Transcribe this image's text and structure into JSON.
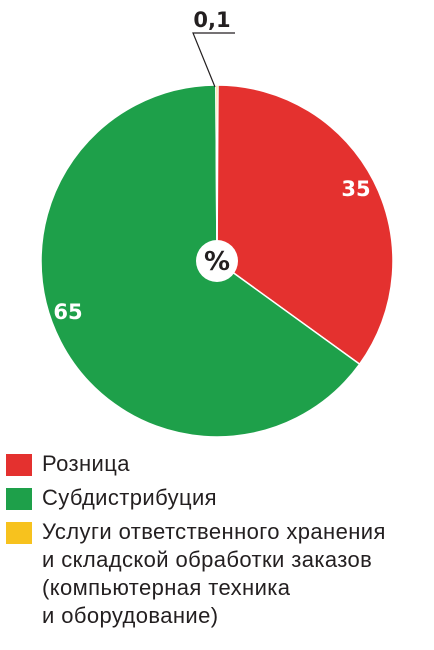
{
  "chart_data": {
    "type": "pie",
    "center_label": "%",
    "slices": [
      {
        "label": "Розница",
        "value": 35,
        "value_label": "35",
        "color": "#e4312f"
      },
      {
        "label": "Субдистрибуция",
        "value": 65,
        "value_label": "65",
        "color": "#1ea04a"
      },
      {
        "label": "Услуги ответственного хранения\nи складской обработки заказов\n(компьютерная техника\nи оборудование)",
        "value": 0.1,
        "value_label": "0,1",
        "color": "#f7c21e"
      }
    ]
  }
}
